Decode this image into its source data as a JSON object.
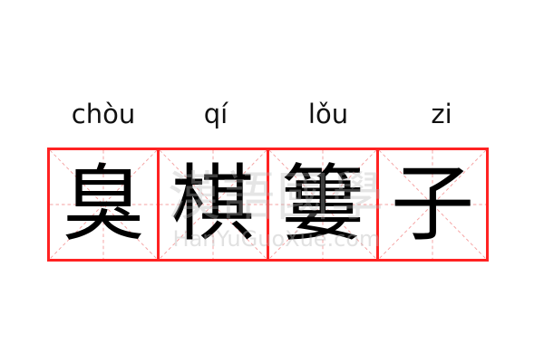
{
  "pinyin": [
    "chòu",
    "qí",
    "lǒu",
    "zi"
  ],
  "characters": [
    "臭",
    "棋",
    "簍",
    "子"
  ],
  "watermark": {
    "logo": "漢語國學",
    "site": "HanYuGuoXue.com"
  },
  "colors": {
    "grid_border": "#ff2222",
    "guide_lines": "#f5a0a0",
    "text": "#000000"
  }
}
